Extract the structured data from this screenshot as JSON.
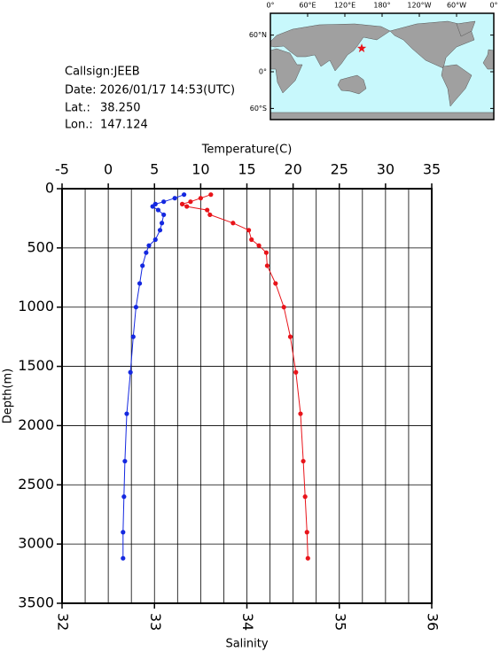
{
  "chart_data": {
    "type": "profile",
    "info": {
      "callsign": "Callsign:JEEB",
      "date": "Date:  2026/01/17 14:53(UTC)",
      "lat_label": "Lat.:",
      "lat": {
        "value": 38.25,
        "label": "38.250"
      },
      "lon_label": "Lon.:",
      "lon": {
        "value": 147.124,
        "label": "147.124"
      }
    },
    "map": {
      "lon_ticks": [
        {
          "value": 0,
          "label": "0°"
        },
        {
          "value": 60,
          "label": "60°E"
        },
        {
          "value": 120,
          "label": "120°E"
        },
        {
          "value": 180,
          "label": "180°"
        },
        {
          "value": 240,
          "label": "120°W"
        },
        {
          "value": 300,
          "label": "60°W"
        },
        {
          "value": 360,
          "label": "0°"
        }
      ],
      "lat_ticks": [
        {
          "value": 60,
          "label": "60°N"
        },
        {
          "value": 0,
          "label": "0°"
        },
        {
          "value": -60,
          "label": "60°S"
        }
      ]
    },
    "x2_label": "Temperature(C)",
    "x_label": "Salinity",
    "y_label": "Depth(m)",
    "x2lim": [
      -5,
      35
    ],
    "x2ticks": [
      -5,
      0,
      5,
      10,
      15,
      20,
      25,
      30,
      35
    ],
    "x2_minor_ticks": [
      -2.5,
      2.5,
      7.5,
      12.5,
      17.5,
      22.5,
      27.5,
      32.5
    ],
    "xlim": [
      32,
      36
    ],
    "xticks": [
      32,
      33,
      34,
      35,
      36
    ],
    "ylim": [
      0,
      3500
    ],
    "yticks": [
      0,
      500,
      1000,
      1500,
      2000,
      2500,
      3000,
      3500
    ],
    "y_inverted": true,
    "grid": true,
    "depth": [
      50,
      80,
      110,
      130,
      150,
      180,
      220,
      290,
      350,
      430,
      480,
      540,
      650,
      800,
      1000,
      1250,
      1550,
      1900,
      2300,
      2600,
      2900,
      3120
    ],
    "series": [
      {
        "name": "Temperature",
        "color": "#e8141a",
        "axis": "x2",
        "values": [
          11.1,
          10.0,
          8.9,
          8.0,
          8.5,
          10.7,
          11.0,
          13.5,
          15.2,
          15.5,
          16.3,
          17.1,
          17.2,
          18.1,
          19.0,
          19.7,
          20.3,
          20.8,
          21.1,
          21.3,
          21.5,
          21.6
        ]
      },
      {
        "name": "Salinity",
        "color": "#1428e0",
        "axis": "x",
        "values": [
          33.32,
          33.22,
          33.1,
          33.01,
          32.98,
          33.04,
          33.1,
          33.08,
          33.06,
          33.01,
          32.94,
          32.91,
          32.87,
          32.84,
          32.8,
          32.77,
          32.74,
          32.7,
          32.68,
          32.67,
          32.66,
          32.66
        ]
      }
    ]
  }
}
